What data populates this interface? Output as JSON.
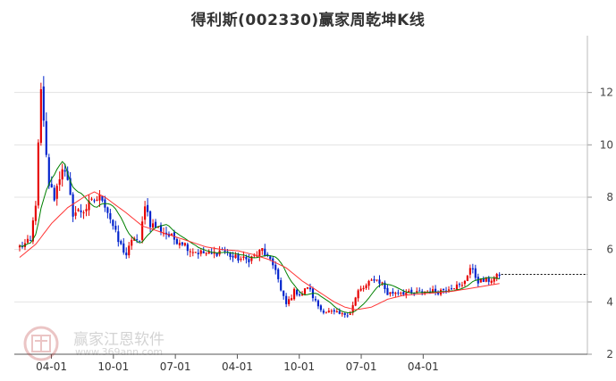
{
  "chart_data": {
    "type": "candlestick",
    "title": "得利斯(002330)赢家周乾坤K线",
    "ylim": [
      2,
      14
    ],
    "y_ticks": [
      2,
      4,
      6,
      8,
      10,
      12
    ],
    "x_tick_labels": [
      "04-01",
      "10-01",
      "07-01",
      "04-01",
      "10-01",
      "07-01",
      "04-01"
    ],
    "up_color": "#e60000",
    "down_color": "#0022cc",
    "ma_short_color": "#008000",
    "ma_long_color": "#ff3333",
    "last_close_guide": 5.05,
    "close_anchors": [
      [
        0,
        6.1
      ],
      [
        4,
        6.3
      ],
      [
        6,
        7.8
      ],
      [
        8,
        12.0
      ],
      [
        10,
        9.5
      ],
      [
        11,
        8.5
      ],
      [
        13,
        8.0
      ],
      [
        16,
        9.2
      ],
      [
        18,
        8.5
      ],
      [
        20,
        7.4
      ],
      [
        24,
        7.5
      ],
      [
        28,
        7.9
      ],
      [
        31,
        8.0
      ],
      [
        34,
        7.2
      ],
      [
        37,
        6.3
      ],
      [
        40,
        5.8
      ],
      [
        43,
        6.5
      ],
      [
        45,
        6.2
      ],
      [
        47,
        7.8
      ],
      [
        49,
        7.0
      ],
      [
        52,
        6.8
      ],
      [
        55,
        6.6
      ],
      [
        58,
        6.4
      ],
      [
        61,
        6.3
      ],
      [
        64,
        6.0
      ],
      [
        67,
        5.9
      ],
      [
        72,
        5.8
      ],
      [
        76,
        6.0
      ],
      [
        80,
        5.7
      ],
      [
        85,
        5.6
      ],
      [
        89,
        5.8
      ],
      [
        91,
        6.0
      ],
      [
        94,
        5.5
      ],
      [
        96,
        5.3
      ],
      [
        98,
        4.4
      ],
      [
        100,
        3.9
      ],
      [
        103,
        4.4
      ],
      [
        106,
        4.3
      ],
      [
        108,
        4.6
      ],
      [
        111,
        4.0
      ],
      [
        113,
        3.7
      ],
      [
        117,
        3.6
      ],
      [
        121,
        3.5
      ],
      [
        124,
        3.6
      ],
      [
        127,
        4.4
      ],
      [
        130,
        4.6
      ],
      [
        133,
        4.9
      ],
      [
        136,
        4.7
      ],
      [
        138,
        4.3
      ],
      [
        142,
        4.4
      ],
      [
        147,
        4.3
      ],
      [
        152,
        4.4
      ],
      [
        157,
        4.4
      ],
      [
        162,
        4.6
      ],
      [
        166,
        4.6
      ],
      [
        169,
        5.3
      ],
      [
        172,
        4.8
      ],
      [
        175,
        4.8
      ],
      [
        178,
        4.9
      ],
      [
        180,
        5.0
      ]
    ],
    "ma_long_anchors": [
      [
        0,
        5.7
      ],
      [
        6,
        6.2
      ],
      [
        12,
        7.0
      ],
      [
        18,
        7.6
      ],
      [
        24,
        8.0
      ],
      [
        28,
        8.2
      ],
      [
        32,
        8.0
      ],
      [
        36,
        7.7
      ],
      [
        40,
        7.4
      ],
      [
        46,
        6.9
      ],
      [
        52,
        6.7
      ],
      [
        58,
        6.5
      ],
      [
        64,
        6.3
      ],
      [
        70,
        6.1
      ],
      [
        76,
        6.0
      ],
      [
        82,
        5.95
      ],
      [
        88,
        5.8
      ],
      [
        94,
        5.6
      ],
      [
        100,
        5.3
      ],
      [
        106,
        4.8
      ],
      [
        112,
        4.4
      ],
      [
        118,
        4.0
      ],
      [
        122,
        3.8
      ],
      [
        126,
        3.7
      ],
      [
        132,
        3.8
      ],
      [
        138,
        4.1
      ],
      [
        144,
        4.25
      ],
      [
        150,
        4.3
      ],
      [
        156,
        4.35
      ],
      [
        162,
        4.4
      ],
      [
        168,
        4.5
      ],
      [
        174,
        4.6
      ],
      [
        180,
        4.7
      ]
    ]
  }
}
